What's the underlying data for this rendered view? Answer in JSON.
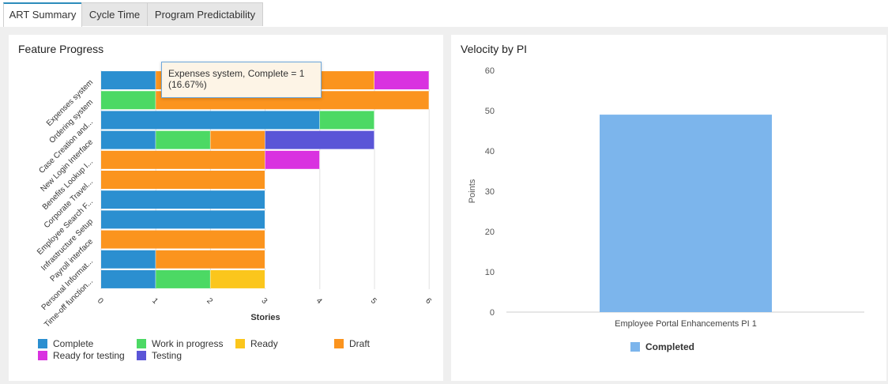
{
  "tabs": [
    {
      "label": "ART Summary",
      "active": true
    },
    {
      "label": "Cycle Time",
      "active": false
    },
    {
      "label": "Program Predictability",
      "active": false
    }
  ],
  "feature_panel": {
    "title": "Feature Progress",
    "tooltip": {
      "line1": "Expenses system, Complete = 1",
      "line2": "(16.67%)"
    }
  },
  "velocity_panel": {
    "title": "Velocity by PI"
  },
  "colors": {
    "Complete": "#2b8fd0",
    "Work in progress": "#4cd964",
    "Ready": "#fbc61c",
    "Draft": "#fb941e",
    "Ready for testing": "#d932e0",
    "Testing": "#5a55d7",
    "Completed": "#7cb5ec"
  },
  "chart_data": [
    {
      "type": "bar",
      "orientation": "horizontal",
      "stacked": true,
      "title": "Feature Progress",
      "xlabel": "Stories",
      "xlim": [
        0,
        6
      ],
      "xticks": [
        0,
        1,
        2,
        3,
        4,
        5,
        6
      ],
      "legend_position": "bottom",
      "categories": [
        "Expenses system",
        "Ordering system",
        "Case Creation and...",
        "New Login Interface",
        "Benefits Lookup I...",
        "Corporate Travel...",
        "Employee Search F...",
        "Infrastructure Setup",
        "Payroll interface",
        "Personal Informat...",
        "Time-off function..."
      ],
      "series": [
        {
          "name": "Complete",
          "values": [
            1,
            0,
            4,
            1,
            0,
            0,
            3,
            3,
            0,
            1,
            1
          ]
        },
        {
          "name": "Work in progress",
          "values": [
            0,
            1,
            1,
            1,
            0,
            0,
            0,
            0,
            0,
            0,
            1
          ]
        },
        {
          "name": "Ready",
          "values": [
            0,
            0,
            0,
            0,
            0,
            0,
            0,
            0,
            0,
            0,
            1
          ]
        },
        {
          "name": "Draft",
          "values": [
            4,
            5,
            0,
            1,
            3,
            3,
            0,
            0,
            3,
            2,
            0
          ]
        },
        {
          "name": "Ready for testing",
          "values": [
            1,
            0,
            0,
            0,
            1,
            0,
            0,
            0,
            0,
            0,
            0
          ]
        },
        {
          "name": "Testing",
          "values": [
            0,
            0,
            0,
            2,
            0,
            0,
            0,
            0,
            0,
            0,
            0
          ]
        }
      ]
    },
    {
      "type": "bar",
      "title": "Velocity by PI",
      "ylabel": "Points",
      "ylim": [
        0,
        60
      ],
      "yticks": [
        0,
        10,
        20,
        30,
        40,
        50,
        60
      ],
      "categories": [
        "Employee Portal Enhancements PI 1"
      ],
      "series": [
        {
          "name": "Completed",
          "values": [
            49
          ]
        }
      ]
    }
  ]
}
